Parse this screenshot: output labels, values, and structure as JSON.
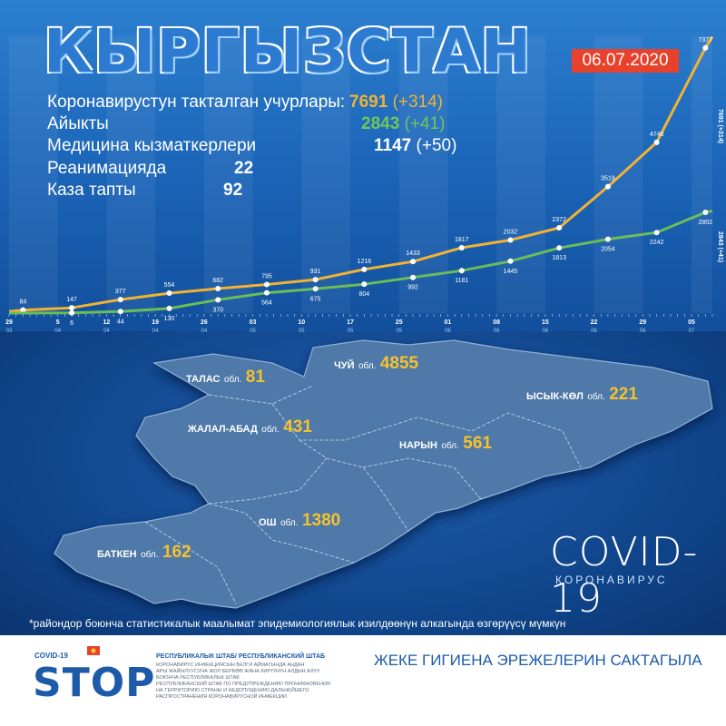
{
  "title": "КЫРГЫЗСТАН",
  "date": "06.07.2020",
  "stats": {
    "confirmed_label": "Коронавирустун такталган учурлары:",
    "confirmed_value": "7691",
    "confirmed_delta": "(+314)",
    "recovered_label": "Айыкты",
    "recovered_value": "2843",
    "recovered_delta": "(+41)",
    "medical_label": "Медицина кызматкерлери",
    "medical_value": "1147",
    "medical_delta": "(+50)",
    "icu_label": "Реанимацияда",
    "icu_value": "22",
    "deaths_label": "Каза тапты",
    "deaths_value": "92"
  },
  "chart_data": {
    "type": "line",
    "series": [
      {
        "color": "#f2b233",
        "points": [
          [
            0,
            45
          ],
          [
            2,
            84
          ],
          [
            9,
            147
          ],
          [
            16,
            377
          ],
          [
            23,
            554
          ],
          [
            30,
            682
          ],
          [
            37,
            795
          ],
          [
            44,
            931
          ],
          [
            51,
            1216
          ],
          [
            58,
            1433
          ],
          [
            65,
            1817
          ],
          [
            72,
            2032
          ],
          [
            79,
            2372
          ],
          [
            86,
            3519
          ],
          [
            93,
            4748
          ],
          [
            100,
            7377
          ],
          [
            101,
            7691
          ]
        ],
        "labeled": [
          [
            2,
            "84"
          ],
          [
            9,
            "147"
          ],
          [
            16,
            "377"
          ],
          [
            23,
            "554"
          ],
          [
            30,
            "682"
          ],
          [
            37,
            "795"
          ],
          [
            44,
            "931"
          ],
          [
            51,
            "1216"
          ],
          [
            58,
            "1433"
          ],
          [
            65,
            "1817"
          ],
          [
            72,
            "2032"
          ],
          [
            79,
            "2372"
          ],
          [
            86,
            "3519"
          ],
          [
            93,
            "4748"
          ],
          [
            100,
            "7377"
          ]
        ]
      },
      {
        "color": "#6bbd57",
        "points": [
          [
            0,
            0
          ],
          [
            9,
            6
          ],
          [
            16,
            44
          ],
          [
            23,
            130
          ],
          [
            30,
            370
          ],
          [
            37,
            564
          ],
          [
            44,
            675
          ],
          [
            51,
            804
          ],
          [
            58,
            992
          ],
          [
            65,
            1181
          ],
          [
            72,
            1445
          ],
          [
            79,
            1813
          ],
          [
            86,
            2054
          ],
          [
            93,
            2242
          ],
          [
            100,
            2802
          ],
          [
            101,
            2843
          ]
        ],
        "labeled": [
          [
            9,
            "6"
          ],
          [
            16,
            "44"
          ],
          [
            23,
            "130"
          ],
          [
            30,
            "370"
          ],
          [
            37,
            "564"
          ],
          [
            44,
            "675"
          ],
          [
            51,
            "804"
          ],
          [
            58,
            "992"
          ],
          [
            65,
            "1181"
          ],
          [
            72,
            "1445"
          ],
          [
            79,
            "1813"
          ],
          [
            86,
            "2054"
          ],
          [
            93,
            "2242"
          ],
          [
            100,
            "2802"
          ]
        ]
      }
    ],
    "end_labels": {
      "confirmed": "7691 (+314)",
      "recovered": "2843 (+41)"
    },
    "x_ticks": [
      {
        "day": "29",
        "month": "03"
      },
      {
        "day": "5",
        "month": "04"
      },
      {
        "day": "12",
        "month": "04"
      },
      {
        "day": "19",
        "month": "04"
      },
      {
        "day": "26",
        "month": "04"
      },
      {
        "day": "03",
        "month": "05"
      },
      {
        "day": "10",
        "month": "05"
      },
      {
        "day": "17",
        "month": "05"
      },
      {
        "day": "25",
        "month": "05"
      },
      {
        "day": "01",
        "month": "06"
      },
      {
        "day": "08",
        "month": "06"
      },
      {
        "day": "15",
        "month": "06"
      },
      {
        "day": "22",
        "month": "06"
      },
      {
        "day": "29",
        "month": "06"
      },
      {
        "day": "05",
        "month": "07"
      }
    ]
  },
  "regions": {
    "talas": {
      "name": "ТАЛАС",
      "ob": "обл.",
      "value": "81"
    },
    "chui": {
      "name": "ЧУЙ",
      "ob": "обл.",
      "value": "4855"
    },
    "issyk": {
      "name": "ЫСЫК-КӨЛ",
      "ob": "обл.",
      "value": "221"
    },
    "jalal": {
      "name": "ЖАЛАЛ-АБАД",
      "ob": "обл.",
      "value": "431"
    },
    "naryn": {
      "name": "НАРЫН",
      "ob": "обл.",
      "value": "561"
    },
    "osh": {
      "name": "ОШ",
      "ob": "обл.",
      "value": "1380"
    },
    "batken": {
      "name": "БАТКЕН",
      "ob": "обл.",
      "value": "162"
    }
  },
  "covid_title": "COVID-19",
  "covid_sub": "КОРОНАВИРУС",
  "footnote": "*райондор боюнча статистикалык маалымат эпидемиологиялык изилдөөнүн алкагында өзгөрүүсү мүмкүн",
  "footer": {
    "covid_small": "COVID-19",
    "stop": "STOP",
    "hq_title": "РЕСПУБЛИКАЛЫК ШТАБ/ РЕСПУБЛИКАНСКИЙ ШТАБ",
    "hq_lines": [
      "КОРОНАВИРУС ИНФЕКЦИЯСЫН БЕЛГИ АЙМАГЫНДА АНДАН",
      "АРЫ ЖАЙЫЛУУСУНА ЖОЛ БЕРБӨӨ ЖАНА КИРҮҮНҮН АЛДЫН АЛУУ",
      "БОЮНЧА РЕСПУБЛИКАЛЫК ШТАБ",
      "РЕСПУБЛИКАНСКИЙ ШТАБ ПО ПРЕДУПРЕЖДЕНИЮ ПРОНИКНОВЕНИЯ",
      "НА ТЕРРИТОРИЮ СТРАНЫ И НЕДОПУЩЕНИЮ ДАЛЬНЕЙШЕГО",
      "РАСПРОСТРАНЕНИЯ КОРОНАВИРУСНОЙ ИНФЕКЦИИ"
    ],
    "hygiene": "ЖЕКЕ ГИГИЕНА ЭРЕЖЕЛЕРИН САКТАГЫЛА"
  }
}
